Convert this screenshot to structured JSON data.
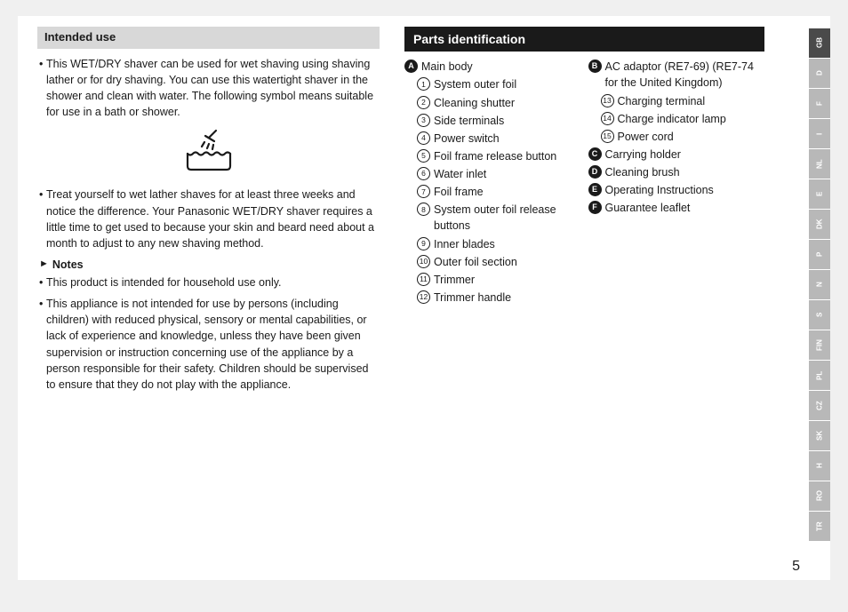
{
  "left": {
    "header": "Intended use",
    "para1": "This WET/DRY shaver can be used for wet shaving using shaving lather or for dry shaving. You can use this watertight shaver in the shower and clean with water. The following symbol means suitable for use in a bath or shower.",
    "para2": "Treat yourself to wet lather shaves for at least three weeks and notice the difference. Your Panasonic WET/DRY shaver requires a little time to get used to because your skin and beard need about a month to adjust to any new shaving method.",
    "notesLabel": "Notes",
    "note1": "This product is intended for household use only.",
    "note2": "This appliance is not intended for use by persons (including children) with reduced physical, sensory or mental capabilities, or lack of experience and knowledge, unless they have been given supervision or instruction concerning use of the appliance by a person responsible for their safety. Children should be supervised to ensure that they do not play with the appliance."
  },
  "right": {
    "header": "Parts identification",
    "col1": [
      {
        "type": "letter",
        "mark": "A",
        "text": "Main body",
        "indent": 0
      },
      {
        "type": "num",
        "mark": "1",
        "text": "System outer foil",
        "indent": 1
      },
      {
        "type": "num",
        "mark": "2",
        "text": "Cleaning shutter",
        "indent": 1
      },
      {
        "type": "num",
        "mark": "3",
        "text": "Side terminals",
        "indent": 1
      },
      {
        "type": "num",
        "mark": "4",
        "text": "Power switch",
        "indent": 1
      },
      {
        "type": "num",
        "mark": "5",
        "text": "Foil frame release button",
        "indent": 1
      },
      {
        "type": "num",
        "mark": "6",
        "text": "Water inlet",
        "indent": 1
      },
      {
        "type": "num",
        "mark": "7",
        "text": "Foil frame",
        "indent": 1
      },
      {
        "type": "num",
        "mark": "8",
        "text": "System outer foil release buttons",
        "indent": 1
      },
      {
        "type": "num",
        "mark": "9",
        "text": "Inner blades",
        "indent": 1
      },
      {
        "type": "num",
        "mark": "10",
        "text": "Outer foil section",
        "indent": 1
      },
      {
        "type": "num",
        "mark": "11",
        "text": "Trimmer",
        "indent": 1
      },
      {
        "type": "num",
        "mark": "12",
        "text": "Trimmer handle",
        "indent": 1
      }
    ],
    "col2": [
      {
        "type": "letter",
        "mark": "B",
        "text": "AC adaptor (RE7-69) (RE7-74 for the United Kingdom)",
        "indent": 0
      },
      {
        "type": "num",
        "mark": "13",
        "text": "Charging terminal",
        "indent": 1
      },
      {
        "type": "num",
        "mark": "14",
        "text": "Charge indicator lamp",
        "indent": 1
      },
      {
        "type": "num",
        "mark": "15",
        "text": "Power cord",
        "indent": 1
      },
      {
        "type": "letter",
        "mark": "C",
        "text": "Carrying holder",
        "indent": 0
      },
      {
        "type": "letter",
        "mark": "D",
        "text": "Cleaning brush",
        "indent": 0
      },
      {
        "type": "letter",
        "mark": "E",
        "text": "Operating Instructions",
        "indent": 0
      },
      {
        "type": "letter",
        "mark": "F",
        "text": "Guarantee leaflet",
        "indent": 0
      }
    ]
  },
  "langTabs": [
    "GB",
    "D",
    "F",
    "I",
    "NL",
    "E",
    "DK",
    "P",
    "N",
    "S",
    "FIN",
    "PL",
    "CZ",
    "SK",
    "H",
    "RO",
    "TR"
  ],
  "activeLang": "GB",
  "pageNumber": "5"
}
